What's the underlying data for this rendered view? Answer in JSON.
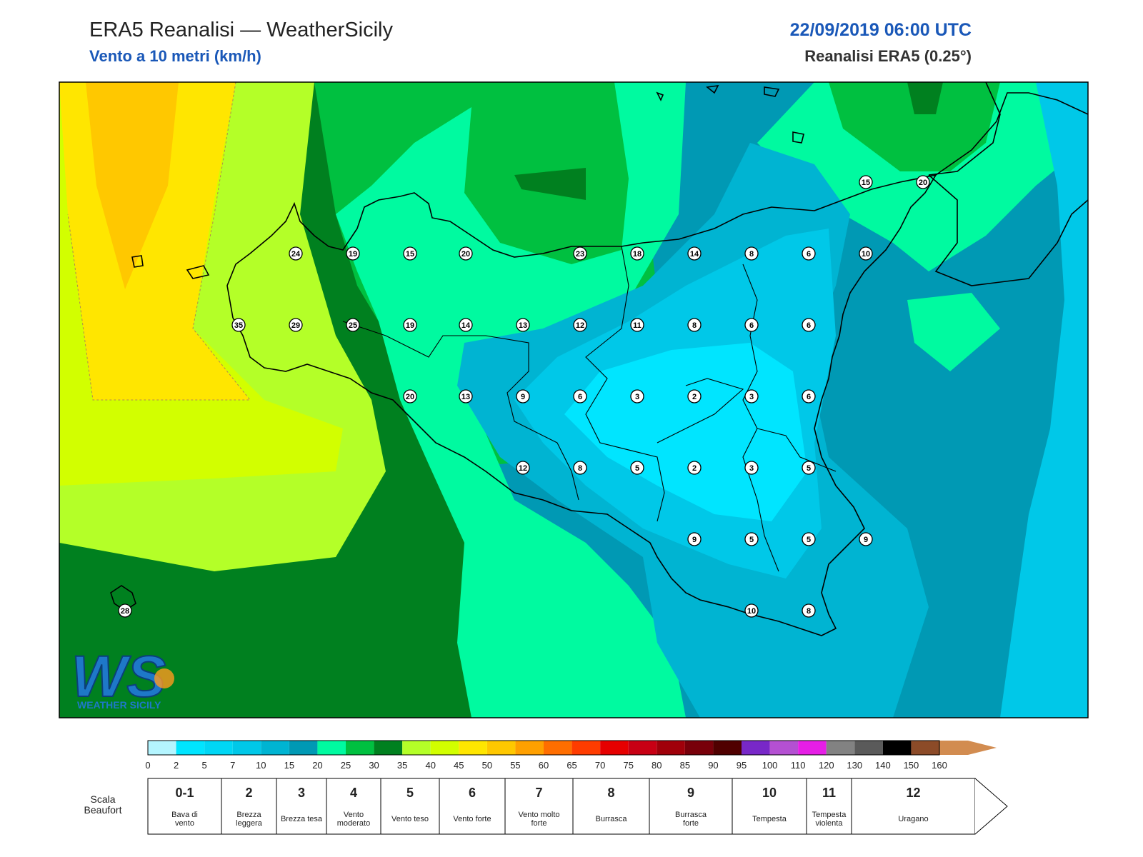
{
  "header": {
    "title": "ERA5 Reanalisi — WeatherSicily",
    "subtitle": "Vento a 10 metri (km/h)",
    "datetime": "22/09/2019 06:00 UTC",
    "source": "Reanalisi ERA5 (0.25°)"
  },
  "logo": {
    "text": "WEATHER SICILY",
    "letters": "WS"
  },
  "colors": {
    "cyan_light": "#00e5ff",
    "cyan": "#00c8e8",
    "teal": "#0099b4",
    "sea_green": "#00faa0",
    "green": "#00c040",
    "dark_green": "#00801f",
    "yellow_green": "#b4ff28",
    "lime": "#d2ff00",
    "yellow": "#ffe600",
    "orange_yellow": "#ffc800"
  },
  "stations": [
    {
      "value": "24"
    },
    {
      "value": "19"
    },
    {
      "value": "15"
    },
    {
      "value": "20"
    },
    {
      "value": "23"
    },
    {
      "value": "18"
    },
    {
      "value": "14"
    },
    {
      "value": "8"
    },
    {
      "value": "6"
    },
    {
      "value": "10"
    },
    {
      "value": "15"
    },
    {
      "value": "20"
    },
    {
      "value": "35"
    },
    {
      "value": "29"
    },
    {
      "value": "25"
    },
    {
      "value": "19"
    },
    {
      "value": "14"
    },
    {
      "value": "13"
    },
    {
      "value": "12"
    },
    {
      "value": "11"
    },
    {
      "value": "8"
    },
    {
      "value": "6"
    },
    {
      "value": "6"
    },
    {
      "value": "20"
    },
    {
      "value": "13"
    },
    {
      "value": "9"
    },
    {
      "value": "6"
    },
    {
      "value": "3"
    },
    {
      "value": "2"
    },
    {
      "value": "3"
    },
    {
      "value": "6"
    },
    {
      "value": "12"
    },
    {
      "value": "8"
    },
    {
      "value": "5"
    },
    {
      "value": "2"
    },
    {
      "value": "3"
    },
    {
      "value": "5"
    },
    {
      "value": "9"
    },
    {
      "value": "5"
    },
    {
      "value": "5"
    },
    {
      "value": "9"
    },
    {
      "value": "10"
    },
    {
      "value": "8"
    },
    {
      "value": "28"
    }
  ],
  "colorbar": {
    "ticks": [
      "0",
      "2",
      "5",
      "7",
      "10",
      "15",
      "20",
      "25",
      "30",
      "35",
      "40",
      "45",
      "50",
      "55",
      "60",
      "65",
      "70",
      "75",
      "80",
      "85",
      "90",
      "95",
      "100",
      "110",
      "120",
      "130",
      "140",
      "150",
      "160"
    ],
    "colors": [
      "#b4f5ff",
      "#00e5ff",
      "#00d7f5",
      "#00c8e8",
      "#00b4d2",
      "#0099b4",
      "#00faa0",
      "#00c040",
      "#00801f",
      "#b4ff28",
      "#d2ff00",
      "#ffe600",
      "#ffc800",
      "#ffa000",
      "#ff6e00",
      "#ff3c00",
      "#e60000",
      "#c80014",
      "#a0000a",
      "#78000a",
      "#500000",
      "#7828c8",
      "#b450d2",
      "#e61ee6",
      "#828282",
      "#5a5a5a",
      "#000000",
      "#8c4b28",
      "#d28c50"
    ]
  },
  "beaufort": {
    "label": "Scala Beaufort",
    "scale": [
      {
        "num": "0-1",
        "desc": "Bava di vento"
      },
      {
        "num": "2",
        "desc": "Brezza leggera"
      },
      {
        "num": "3",
        "desc": "Brezza tesa"
      },
      {
        "num": "4",
        "desc": "Vento moderato"
      },
      {
        "num": "5",
        "desc": "Vento teso"
      },
      {
        "num": "6",
        "desc": "Vento forte"
      },
      {
        "num": "7",
        "desc": "Vento molto forte"
      },
      {
        "num": "8",
        "desc": "Burrasca"
      },
      {
        "num": "9",
        "desc": "Burrasca forte"
      },
      {
        "num": "10",
        "desc": "Tempesta"
      },
      {
        "num": "11",
        "desc": "Tempesta violenta"
      },
      {
        "num": "12",
        "desc": "Uragano"
      }
    ]
  }
}
